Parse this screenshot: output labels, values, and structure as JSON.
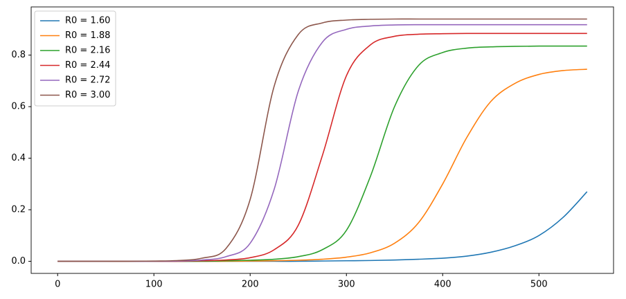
{
  "chart_data": {
    "type": "line",
    "x": [
      0,
      25,
      50,
      75,
      100,
      125,
      150,
      175,
      200,
      225,
      250,
      275,
      300,
      325,
      350,
      375,
      400,
      425,
      450,
      475,
      500,
      525,
      550
    ],
    "series": [
      {
        "name": "R0 = 1.60",
        "color": "#1f77b4",
        "values": [
          0,
          0,
          0,
          0,
          0,
          0,
          0,
          0,
          0,
          0,
          0,
          0.001,
          0.002,
          0.003,
          0.005,
          0.008,
          0.012,
          0.02,
          0.035,
          0.06,
          0.1,
          0.17,
          0.27
        ]
      },
      {
        "name": "R0 = 1.88",
        "color": "#ff7f0e",
        "values": [
          0,
          0,
          0,
          0,
          0,
          0,
          0,
          0,
          0.001,
          0.002,
          0.004,
          0.008,
          0.016,
          0.033,
          0.07,
          0.15,
          0.3,
          0.48,
          0.62,
          0.69,
          0.725,
          0.74,
          0.745
        ]
      },
      {
        "name": "R0 = 2.16",
        "color": "#2ca02c",
        "values": [
          0,
          0,
          0,
          0,
          0,
          0,
          0,
          0.002,
          0.004,
          0.008,
          0.018,
          0.045,
          0.12,
          0.33,
          0.6,
          0.76,
          0.81,
          0.827,
          0.832,
          0.834,
          0.835,
          0.835,
          0.835
        ]
      },
      {
        "name": "R0 = 2.44",
        "color": "#d62728",
        "values": [
          0,
          0,
          0,
          0,
          0,
          0,
          0.002,
          0.005,
          0.014,
          0.045,
          0.14,
          0.41,
          0.72,
          0.84,
          0.873,
          0.881,
          0.883,
          0.884,
          0.884,
          0.884,
          0.884,
          0.884,
          0.884
        ]
      },
      {
        "name": "R0 = 2.72",
        "color": "#9467bd",
        "values": [
          0,
          0,
          0,
          0,
          0,
          0.001,
          0.005,
          0.018,
          0.07,
          0.28,
          0.66,
          0.85,
          0.9,
          0.913,
          0.917,
          0.918,
          0.918,
          0.918,
          0.918,
          0.918,
          0.918,
          0.918,
          0.918
        ]
      },
      {
        "name": "R0 = 3.00",
        "color": "#8c564b",
        "values": [
          0,
          0,
          0,
          0,
          0.001,
          0.003,
          0.012,
          0.05,
          0.24,
          0.68,
          0.88,
          0.925,
          0.936,
          0.939,
          0.94,
          0.94,
          0.94,
          0.94,
          0.94,
          0.94,
          0.94,
          0.94,
          0.94
        ]
      }
    ],
    "xlim": [
      -27.5,
      577.5
    ],
    "ylim": [
      -0.047,
      0.987
    ],
    "xticks": [
      0,
      100,
      200,
      300,
      400,
      500
    ],
    "yticks": [
      {
        "value": 0,
        "label": "0.0"
      },
      {
        "value": 0.2,
        "label": "0.2"
      },
      {
        "value": 0.4,
        "label": "0.4"
      },
      {
        "value": 0.6,
        "label": "0.6"
      },
      {
        "value": 0.8,
        "label": "0.8"
      }
    ],
    "grid": false,
    "legend": "upper left"
  }
}
